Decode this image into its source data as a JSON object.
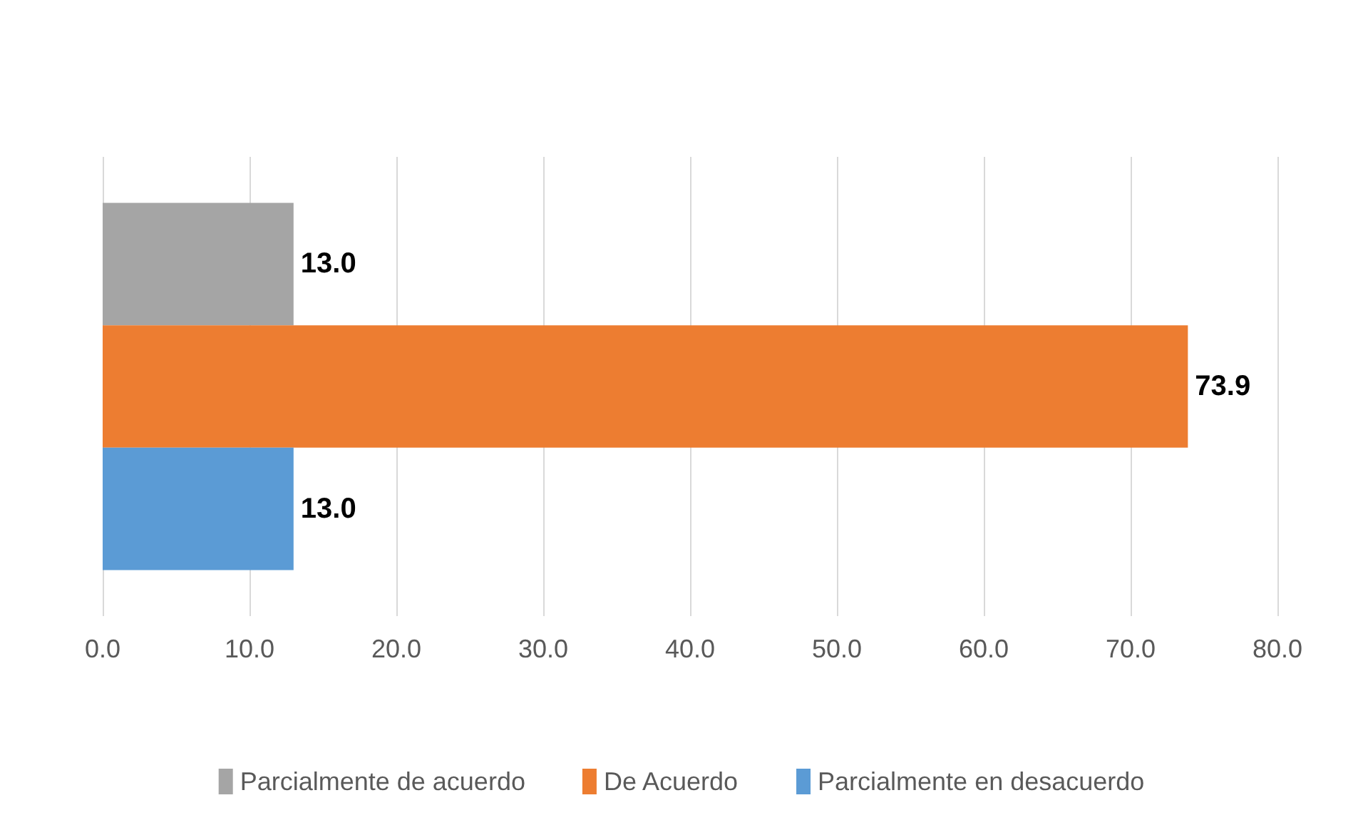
{
  "chart_data": {
    "type": "bar",
    "orientation": "horizontal",
    "categories": [
      null
    ],
    "series": [
      {
        "name": "Parcialmente de acuerdo",
        "color": "#a5a5a5",
        "values": [
          13.0
        ],
        "value_labels": [
          "13.0"
        ]
      },
      {
        "name": "De Acuerdo",
        "color": "#ed7d31",
        "values": [
          73.9
        ],
        "value_labels": [
          "73.9"
        ]
      },
      {
        "name": "Parcialmente en desacuerdo",
        "color": "#5b9bd5",
        "values": [
          13.0
        ],
        "value_labels": [
          "13.0"
        ]
      }
    ],
    "xlim": [
      0,
      80
    ],
    "xticks": [
      {
        "value": 0,
        "label": "0.0"
      },
      {
        "value": 10,
        "label": "10.0"
      },
      {
        "value": 20,
        "label": "20.0"
      },
      {
        "value": 30,
        "label": "30.0"
      },
      {
        "value": 40,
        "label": "40.0"
      },
      {
        "value": 50,
        "label": "50.0"
      },
      {
        "value": 60,
        "label": "60.0"
      },
      {
        "value": 70,
        "label": "70.0"
      },
      {
        "value": 80,
        "label": "80.0"
      }
    ],
    "grid": "x",
    "legend": "bottom"
  }
}
